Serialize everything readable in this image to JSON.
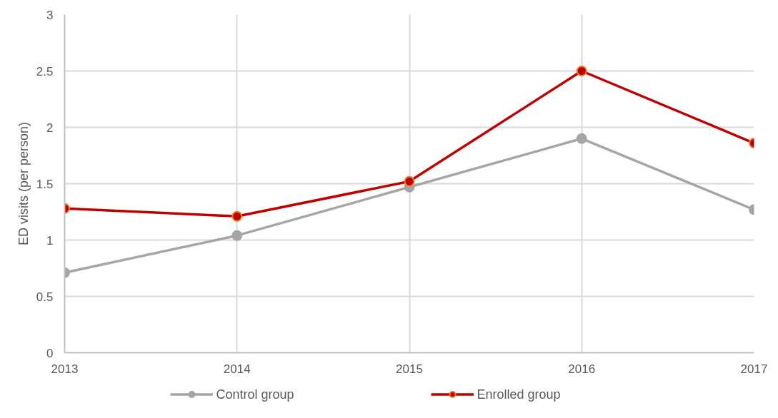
{
  "chart_data": {
    "type": "line",
    "ylabel": "ED visits (per person)",
    "x": [
      2013,
      2014,
      2015,
      2016,
      2017
    ],
    "xlim": [
      2013,
      2017
    ],
    "xticks": [
      2013,
      2014,
      2015,
      2016,
      2017
    ],
    "ylim": [
      0,
      3
    ],
    "yticks": [
      0,
      0.5,
      1,
      1.5,
      2,
      2.5,
      3
    ],
    "grid": true,
    "legend": "bottom",
    "marker": "circle",
    "line_style": "solid",
    "series": [
      {
        "name": "Control group",
        "color": "#a5a5a5",
        "values": [
          0.71,
          1.04,
          1.47,
          1.9,
          1.27
        ]
      },
      {
        "name": "Enrolled group",
        "color": "#c00000",
        "values": [
          1.28,
          1.21,
          1.52,
          2.5,
          1.86
        ]
      }
    ]
  }
}
